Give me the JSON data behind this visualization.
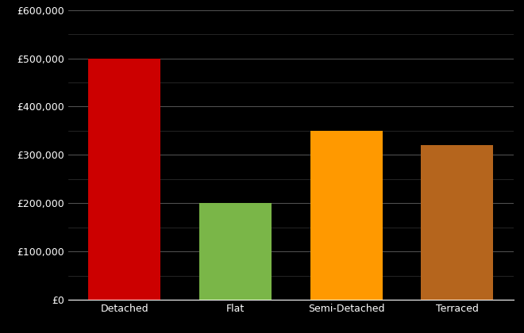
{
  "categories": [
    "Detached",
    "Flat",
    "Semi-Detached",
    "Terraced"
  ],
  "values": [
    500000,
    200000,
    350000,
    320000
  ],
  "bar_colors": [
    "#cc0000",
    "#7ab648",
    "#ff9900",
    "#b5651d"
  ],
  "background_color": "#000000",
  "text_color": "#ffffff",
  "grid_color": "#555555",
  "minor_grid_color": "#333333",
  "ylim": [
    0,
    600000
  ],
  "yticks": [
    0,
    100000,
    200000,
    300000,
    400000,
    500000,
    600000
  ],
  "bar_width": 0.65
}
